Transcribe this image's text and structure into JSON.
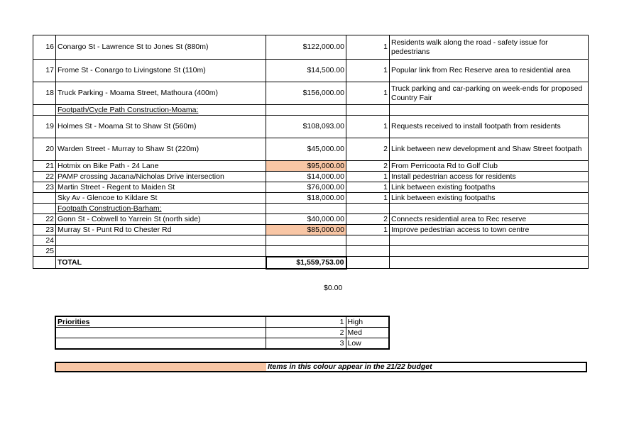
{
  "rows": [
    {
      "num": "16",
      "name": "Conargo St - Lawrence St to Jones St (880m)",
      "cost": "$122,000.00",
      "priority": "1",
      "comment": "Residents walk along the road - safety issue for pedestrians",
      "highlight": false
    },
    {
      "num": "17",
      "name": "Frome St - Conargo to Livingstone St (110m)",
      "cost": "$14,500.00",
      "priority": "1",
      "comment": "Popular link from Rec Reserve area to residential area",
      "highlight": false
    },
    {
      "num": "18",
      "name": "Truck Parking - Moama Street, Mathoura (400m)",
      "cost": "$156,000.00",
      "priority": "1",
      "comment": "Truck parking and car-parking on week-ends for proposed Country Fair",
      "highlight": false
    },
    {
      "section": "Footpath/Cycle Path  Construction-Moama:"
    },
    {
      "num": "19",
      "name": "Holmes St - Moama St to Shaw St (560m)",
      "cost": "$108,093.00",
      "priority": "1",
      "comment": "Requests received to install footpath from residents",
      "highlight": false
    },
    {
      "num": "20",
      "name": "Warden Street - Murray to Shaw St (220m)",
      "cost": "$45,000.00",
      "priority": "2",
      "comment": "Link between new development and Shaw Street footpath",
      "highlight": false
    },
    {
      "num": "21",
      "name": "Hotmix on Bike Path - 24 Lane",
      "cost": "$95,000.00",
      "priority": "2",
      "comment": "From Perricoota Rd to Golf Club",
      "highlight": true
    },
    {
      "num": "22",
      "name": "PAMP crossing Jacana/Nicholas Drive intersection",
      "cost": "$14,000.00",
      "priority": "1",
      "comment": "Install pedestrian access for residents",
      "highlight": false
    },
    {
      "num": "23",
      "name": "Martin Street - Regent to Maiden St",
      "cost": "$76,000.00",
      "priority": "1",
      "comment": "Link between existing footpaths",
      "highlight": false
    },
    {
      "num": "",
      "name": "Sky Av - Glencoe to Kildare St",
      "cost": "$18,000.00",
      "priority": "1",
      "comment": "Link between existing footpaths",
      "highlight": false
    },
    {
      "section": "Footpath Construction-Barham:"
    },
    {
      "num": "22",
      "name": "Gonn St - Cobwell to Yarrein St (north side)",
      "cost": "$40,000.00",
      "priority": "2",
      "comment": "Connects residential area to Rec reserve",
      "highlight": false
    },
    {
      "num": "23",
      "name": "Murray St - Punt Rd to Chester Rd",
      "cost": "$85,000.00",
      "priority": "1",
      "comment": "Improve pedestrian access to town centre",
      "highlight": true
    },
    {
      "num": "24",
      "name": "",
      "cost": "",
      "priority": "",
      "comment": "",
      "highlight": false
    },
    {
      "num": "25",
      "name": "",
      "cost": "",
      "priority": "",
      "comment": "",
      "highlight": false
    }
  ],
  "total": {
    "label": "TOTAL",
    "amount": "$1,559,753.00"
  },
  "zero_value": "$0.00",
  "priorities": {
    "title": "Priorities",
    "items": [
      {
        "num": "1",
        "label": "High"
      },
      {
        "num": "2",
        "label": "Med"
      },
      {
        "num": "3",
        "label": "Low"
      }
    ]
  },
  "legend": {
    "text": "Items in this colour appear in the 21/22 budget",
    "color": "#f8c6a5"
  }
}
